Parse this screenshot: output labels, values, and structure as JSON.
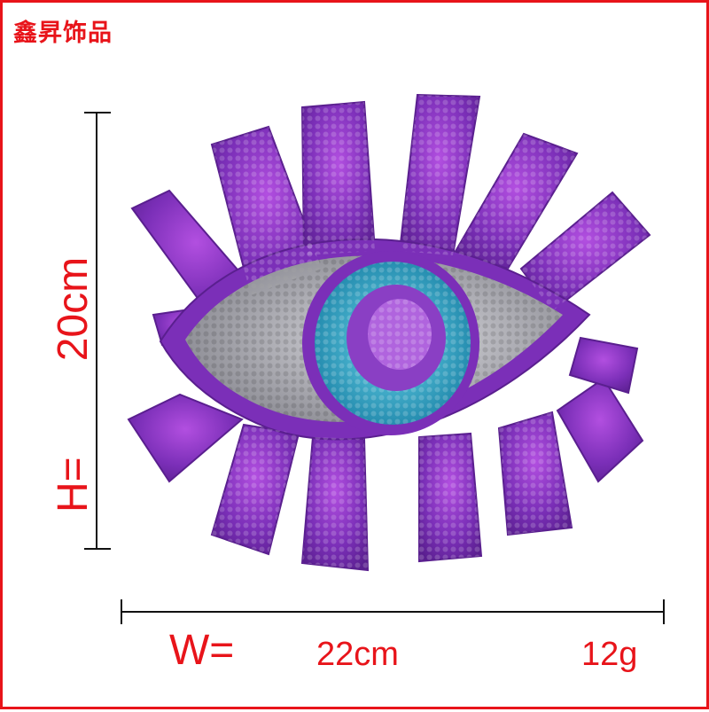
{
  "brand": {
    "text": "鑫昇饰品"
  },
  "dimensions": {
    "height_label": "H=",
    "height_value": "20cm",
    "width_label": "W=",
    "width_value": "22cm",
    "weight": "12g"
  },
  "colors": {
    "accent_red": "#e8141a",
    "lash_purple": "#7b2fb8",
    "eye_silver": "#a9a9ae",
    "iris_teal": "#2fa9c9"
  },
  "image": {
    "subject": "sequin-eye-patch-icon"
  }
}
